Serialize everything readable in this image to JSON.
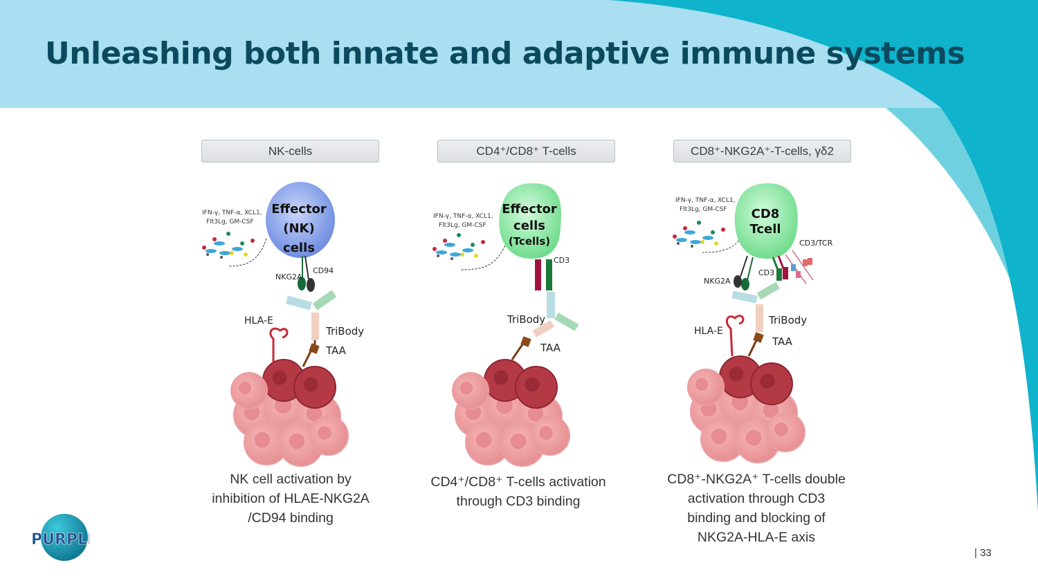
{
  "slide": {
    "title": "Unleashing both innate and adaptive immune systems",
    "page_number": "| 33",
    "logo_text": "PURPLE",
    "colors": {
      "header_band": "#a9dff0",
      "accent_arc": "#0fb3cc",
      "title": "#0b4a5e"
    }
  },
  "panels": [
    {
      "header": "NK-cells",
      "cell_label": [
        "Effector",
        "(NK)",
        "cells"
      ],
      "cytokines": [
        "IFN-γ, TNF-α, XCL1,",
        "Flt3Lg, GM-CSF"
      ],
      "labels": {
        "receptor1": "NKG2A",
        "receptor2": "CD94",
        "hla": "HLA-E",
        "tribody": "TriBody",
        "taa": "TAA"
      },
      "caption": [
        "NK cell activation by",
        "inhibition of HLAE-NKG2A",
        "/CD94 binding"
      ]
    },
    {
      "header": "CD4⁺/CD8⁺ T-cells",
      "cell_label": [
        "Effector",
        "cells",
        "(Tcells)"
      ],
      "cytokines": [
        "IFN-γ, TNF-α, XCL1,",
        "Flt3Lg, GM-CSF"
      ],
      "labels": {
        "cd3": "CD3",
        "tribody": "TriBody",
        "taa": "TAA"
      },
      "caption": [
        "CD4⁺/CD8⁺ T-cells activation",
        "through CD3 binding"
      ]
    },
    {
      "header": "CD8⁺-NKG2A⁺-T-cells, γδ2",
      "cell_label": [
        "CD8",
        "Tcell"
      ],
      "cytokines": [
        "IFN-γ, TNF-α, XCL1,",
        "Flt3Lg, GM-CSF"
      ],
      "labels": {
        "cd3tcr": "CD3/TCR",
        "cd3": "CD3",
        "receptor1": "NKG2A",
        "hla": "HLA-E",
        "tribody": "TriBody",
        "taa": "TAA"
      },
      "caption": [
        "CD8⁺-NKG2A⁺ T-cells double",
        "activation through CD3",
        "binding and blocking of",
        "NKG2A-HLA-E axis"
      ]
    }
  ]
}
